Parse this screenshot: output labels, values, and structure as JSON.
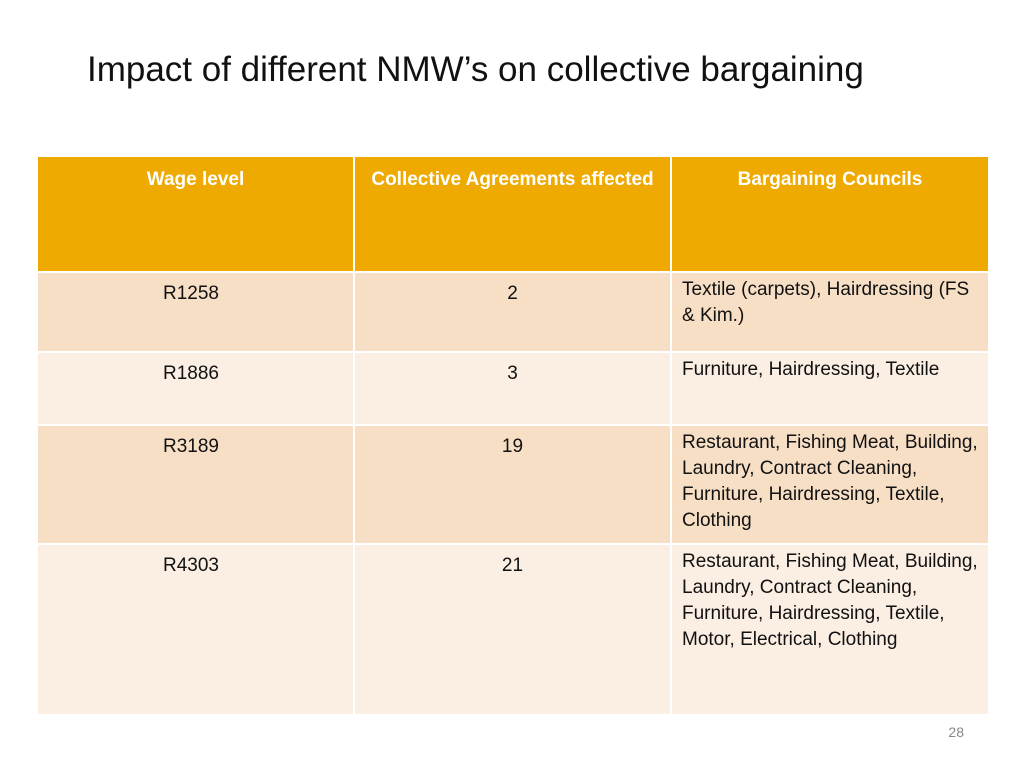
{
  "slide": {
    "title": "Impact of different NMW’s on collective bargaining",
    "page_number": "28"
  },
  "table": {
    "headers": {
      "wage_level": "Wage level",
      "collective_agreements": "Collective Agreements affected",
      "bargaining_councils": "Bargaining Councils"
    },
    "rows": [
      {
        "wage_level": "R1258",
        "agreements": "2",
        "councils": "Textile (carpets), Hairdressing (FS & Kim.)"
      },
      {
        "wage_level": "R1886",
        "agreements": "3",
        "councils": "Furniture, Hairdressing, Textile"
      },
      {
        "wage_level": "R3189",
        "agreements": "19",
        "councils": "Restaurant, Fishing Meat, Building, Laundry, Contract Cleaning, Furniture, Hairdressing, Textile, Clothing"
      },
      {
        "wage_level": "R4303",
        "agreements": "21",
        "councils": "Restaurant, Fishing Meat, Building, Laundry, Contract Cleaning, Furniture, Hairdressing, Textile, Motor, Electrical, Clothing"
      }
    ]
  },
  "colors": {
    "header_bg": "#eeaa00",
    "row_odd_bg": "#f7dfc6",
    "row_even_bg": "#fbeee3"
  }
}
